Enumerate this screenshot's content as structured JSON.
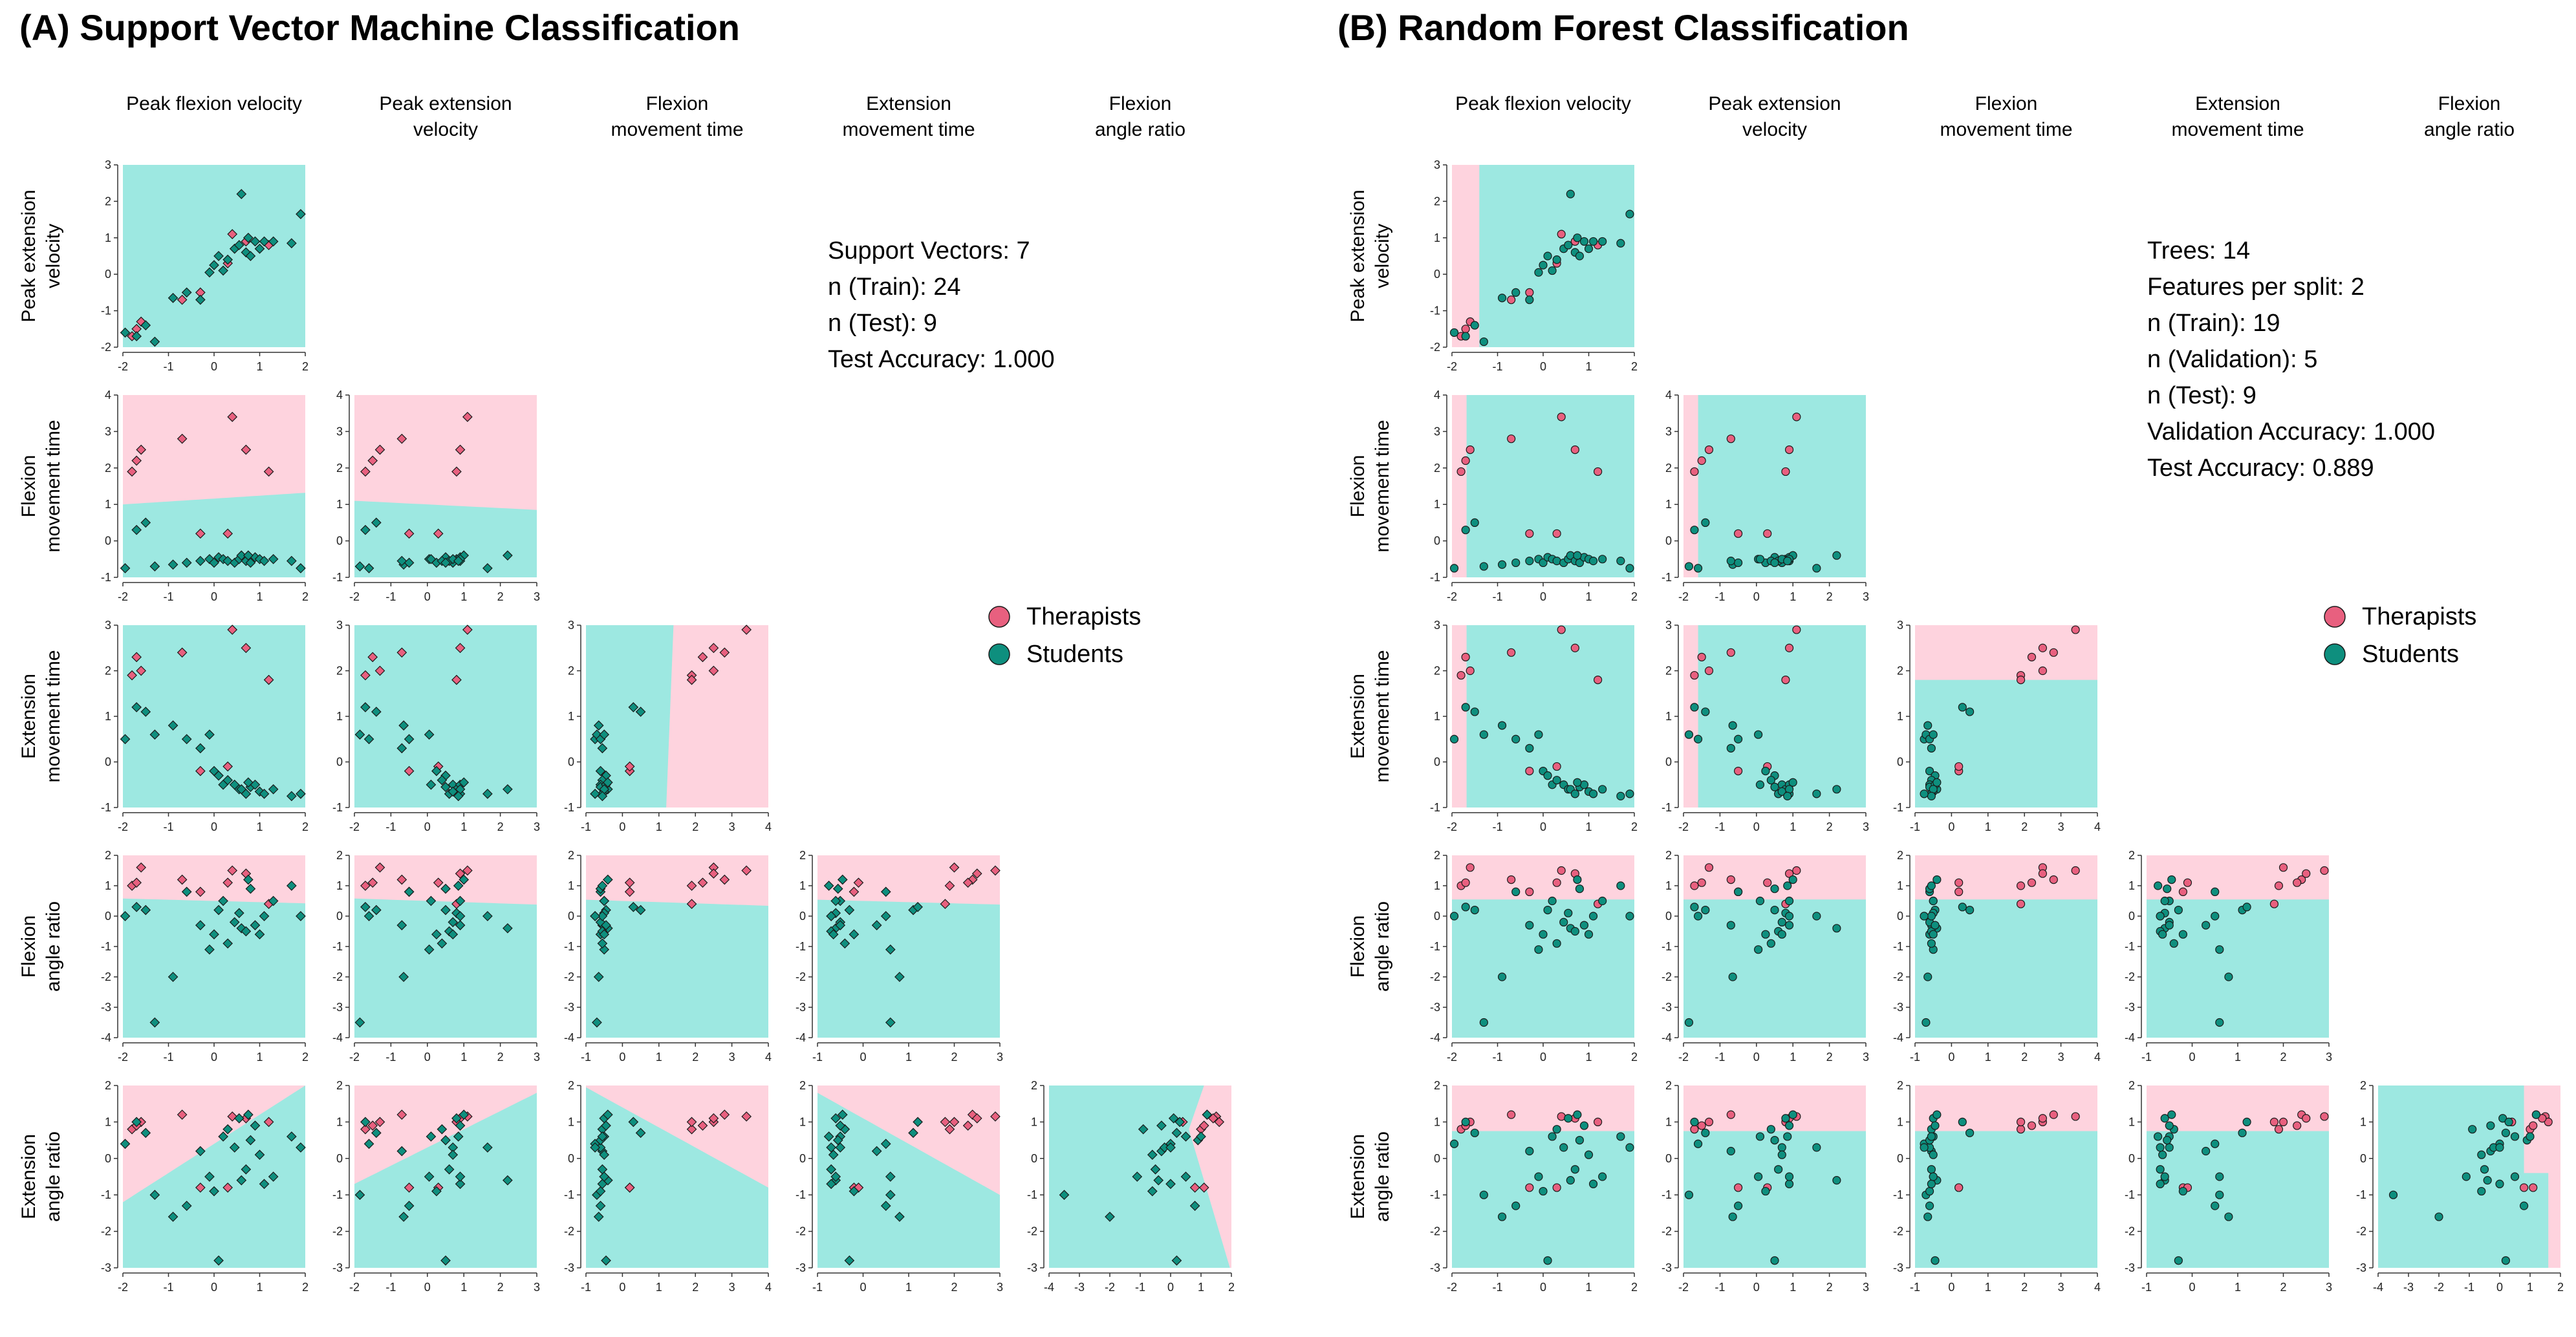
{
  "figure": {
    "colors": {
      "therapist_region": "#fed3de",
      "student_region": "#9de8e1",
      "therapist_marker": "#e8607f",
      "student_marker": "#0e8f7e",
      "marker_edge": "#1a1a1a"
    }
  },
  "panels": [
    {
      "id": "A",
      "title": "(A) Support Vector Machine Classification",
      "info": [
        "Support Vectors: 7",
        "n (Train): 24",
        "n (Test): 9",
        "Test Accuracy: 1.000"
      ],
      "legend": [
        {
          "label": "Therapists",
          "color": "#e8607f"
        },
        {
          "label": "Students",
          "color": "#0e8f7e"
        }
      ]
    },
    {
      "id": "B",
      "title": "(B) Random Forest Classification",
      "info": [
        "Trees: 14",
        "Features per split: 2",
        "n (Train): 19",
        "n (Validation): 5",
        "n (Test): 9",
        "Validation Accuracy: 1.000",
        "Test Accuracy: 0.889"
      ],
      "legend": [
        {
          "label": "Therapists",
          "color": "#e8607f"
        },
        {
          "label": "Students",
          "color": "#0e8f7e"
        }
      ]
    }
  ],
  "chart_data": {
    "type": "scatter",
    "description_of_grid": "pairwise scatter matrix of 5 kinematic features, lower triangle, two classifiers",
    "features": [
      {
        "key": "pfv",
        "column_label": [
          "Peak flexion velocity"
        ],
        "row_label": [
          "Peak flexion velocity"
        ],
        "range": [
          -2,
          2
        ],
        "ticks": [
          -2,
          -1,
          0,
          1,
          2
        ]
      },
      {
        "key": "pev",
        "column_label": [
          "Peak extension",
          "velocity"
        ],
        "row_label": [
          "Peak extension",
          "velocity"
        ],
        "range": [
          -2,
          3
        ],
        "ticks": [
          -2,
          -1,
          0,
          1,
          2,
          3
        ]
      },
      {
        "key": "fmt",
        "column_label": [
          "Flexion",
          "movement time"
        ],
        "row_label": [
          "Flexion",
          "movement time"
        ],
        "range": [
          -1,
          4
        ],
        "ticks": [
          -1,
          0,
          1,
          2,
          3,
          4
        ]
      },
      {
        "key": "emt",
        "column_label": [
          "Extension",
          "movement time"
        ],
        "row_label": [
          "Extension",
          "movement time"
        ],
        "range": [
          -1,
          3
        ],
        "ticks": [
          -1,
          0,
          1,
          2,
          3
        ]
      },
      {
        "key": "far",
        "column_label": [
          "Flexion",
          "angle ratio"
        ],
        "row_label": [
          "Flexion",
          "angle ratio"
        ],
        "range": [
          -4,
          2
        ],
        "ticks": [
          -4,
          -3,
          -2,
          -1,
          0,
          1,
          2
        ]
      },
      {
        "key": "ear",
        "column_label": [
          "Extension",
          "angle ratio"
        ],
        "row_label": [
          "Extension",
          "angle ratio"
        ],
        "range": [
          -3,
          2
        ],
        "ticks": [
          -3,
          -2,
          -1,
          0,
          1,
          2
        ]
      }
    ],
    "column_features": [
      "pfv",
      "pev",
      "fmt",
      "emt",
      "far"
    ],
    "row_features": [
      "pev",
      "fmt",
      "emt",
      "far",
      "ear"
    ],
    "series": [
      {
        "name": "Therapists",
        "color": "#e8607f",
        "points": [
          {
            "pfv": 0.4,
            "pev": 1.1,
            "fmt": 3.4,
            "emt": 2.9,
            "far": 1.5,
            "ear": 1.15
          },
          {
            "pfv": -0.7,
            "pev": -0.7,
            "fmt": 2.8,
            "emt": 2.4,
            "far": 1.2,
            "ear": 1.2
          },
          {
            "pfv": -1.6,
            "pev": -1.3,
            "fmt": 2.5,
            "emt": 2.0,
            "far": 1.6,
            "ear": 1.0
          },
          {
            "pfv": -1.8,
            "pev": -1.7,
            "fmt": 1.9,
            "emt": 1.9,
            "far": 1.0,
            "ear": 0.8
          },
          {
            "pfv": -1.7,
            "pev": -1.5,
            "fmt": 2.2,
            "emt": 2.3,
            "far": 1.1,
            "ear": 0.9
          },
          {
            "pfv": 0.7,
            "pev": 0.9,
            "fmt": 2.5,
            "emt": 2.5,
            "far": 1.4,
            "ear": 1.1
          },
          {
            "pfv": -0.3,
            "pev": -0.5,
            "fmt": 0.2,
            "emt": -0.2,
            "far": 0.8,
            "ear": -0.8
          },
          {
            "pfv": 0.3,
            "pev": 0.3,
            "fmt": 0.2,
            "emt": -0.1,
            "far": 1.1,
            "ear": -0.8
          },
          {
            "pfv": 1.2,
            "pev": 0.8,
            "fmt": 1.9,
            "emt": 1.8,
            "far": 0.4,
            "ear": 1.0
          }
        ]
      },
      {
        "name": "Students",
        "color": "#0e8f7e",
        "points": [
          {
            "pfv": -1.95,
            "pev": -1.6,
            "fmt": -0.75,
            "emt": 0.5,
            "far": 0.0,
            "ear": 0.4
          },
          {
            "pfv": -1.3,
            "pev": -1.85,
            "fmt": -0.7,
            "emt": 0.6,
            "far": -3.5,
            "ear": -1.0
          },
          {
            "pfv": -0.9,
            "pev": -0.65,
            "fmt": -0.65,
            "emt": 0.8,
            "far": -2.0,
            "ear": -1.6
          },
          {
            "pfv": -0.6,
            "pev": -0.5,
            "fmt": -0.6,
            "emt": 0.5,
            "far": 0.8,
            "ear": -1.3
          },
          {
            "pfv": -0.3,
            "pev": -0.7,
            "fmt": -0.55,
            "emt": 0.3,
            "far": -0.3,
            "ear": 0.2
          },
          {
            "pfv": -0.1,
            "pev": 0.05,
            "fmt": -0.5,
            "emt": 0.6,
            "far": -1.1,
            "ear": -0.5
          },
          {
            "pfv": 0.0,
            "pev": 0.25,
            "fmt": -0.6,
            "emt": -0.2,
            "far": -0.6,
            "ear": -0.9
          },
          {
            "pfv": 0.1,
            "pev": 0.5,
            "fmt": -0.45,
            "emt": -0.3,
            "far": 0.2,
            "ear": -2.8
          },
          {
            "pfv": 0.2,
            "pev": 0.1,
            "fmt": -0.5,
            "emt": -0.5,
            "far": 0.5,
            "ear": 0.6
          },
          {
            "pfv": 0.3,
            "pev": 0.4,
            "fmt": -0.55,
            "emt": -0.4,
            "far": -0.9,
            "ear": 0.8
          },
          {
            "pfv": 0.45,
            "pev": 0.7,
            "fmt": -0.6,
            "emt": -0.5,
            "far": -0.2,
            "ear": 0.3
          },
          {
            "pfv": 0.55,
            "pev": 0.8,
            "fmt": -0.5,
            "emt": -0.6,
            "far": 0.1,
            "ear": 1.1
          },
          {
            "pfv": 0.6,
            "pev": 2.2,
            "fmt": -0.4,
            "emt": -0.6,
            "far": -0.4,
            "ear": -0.6
          },
          {
            "pfv": 0.7,
            "pev": 0.6,
            "fmt": -0.55,
            "emt": -0.7,
            "far": -0.5,
            "ear": -0.3
          },
          {
            "pfv": 0.8,
            "pev": 0.5,
            "fmt": -0.6,
            "emt": -0.55,
            "far": 0.9,
            "ear": 0.5
          },
          {
            "pfv": 0.9,
            "pev": 0.9,
            "fmt": -0.45,
            "emt": -0.5,
            "far": -0.3,
            "ear": 0.9
          },
          {
            "pfv": 1.0,
            "pev": 0.7,
            "fmt": -0.5,
            "emt": -0.65,
            "far": -0.6,
            "ear": 0.1
          },
          {
            "pfv": 1.1,
            "pev": 0.9,
            "fmt": -0.55,
            "emt": -0.7,
            "far": 0.0,
            "ear": -0.7
          },
          {
            "pfv": 0.75,
            "pev": 1.0,
            "fmt": -0.4,
            "emt": -0.45,
            "far": 1.2,
            "ear": 1.2
          },
          {
            "pfv": 1.3,
            "pev": 0.9,
            "fmt": -0.5,
            "emt": -0.6,
            "far": 0.5,
            "ear": -0.5
          },
          {
            "pfv": 1.7,
            "pev": 0.85,
            "fmt": -0.55,
            "emt": -0.75,
            "far": 1.0,
            "ear": 0.6
          },
          {
            "pfv": 1.9,
            "pev": 1.65,
            "fmt": -0.75,
            "emt": -0.7,
            "far": 0.0,
            "ear": 0.3
          },
          {
            "pfv": -1.5,
            "pev": -1.4,
            "fmt": 0.5,
            "emt": 1.1,
            "far": 0.2,
            "ear": 0.7
          },
          {
            "pfv": -1.7,
            "pev": -1.7,
            "fmt": 0.3,
            "emt": 1.2,
            "far": 0.3,
            "ear": 1.0
          }
        ]
      }
    ],
    "decision_regions": "therapist region pink, student region cyan; SVM boundaries roughly linear, Random Forest boundaries axis-aligned"
  }
}
